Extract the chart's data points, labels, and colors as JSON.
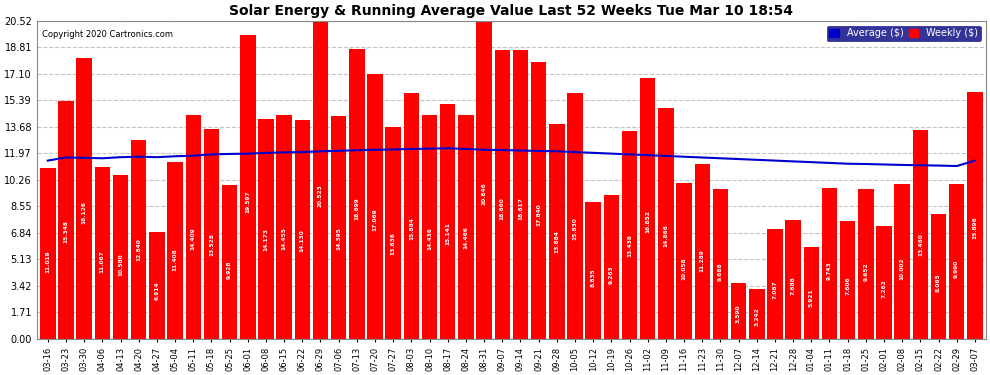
{
  "title": "Solar Energy & Running Average Value Last 52 Weeks Tue Mar 10 18:54",
  "copyright": "Copyright 2020 Cartronics.com",
  "bar_color": "#FF0000",
  "avg_line_color": "#0000CC",
  "background_color": "#FFFFFF",
  "plot_bg_color": "#FFFFFF",
  "grid_color": "#AAAAAA",
  "yticks": [
    0.0,
    1.71,
    3.42,
    5.13,
    6.84,
    8.55,
    10.26,
    11.97,
    13.68,
    15.39,
    17.1,
    18.81,
    20.52
  ],
  "ylim": [
    0,
    20.52
  ],
  "categories": [
    "03-16",
    "03-23",
    "03-30",
    "04-06",
    "04-13",
    "04-20",
    "04-27",
    "05-04",
    "05-11",
    "05-18",
    "05-25",
    "06-01",
    "06-08",
    "06-15",
    "06-22",
    "06-29",
    "07-06",
    "07-13",
    "07-20",
    "07-27",
    "08-03",
    "08-10",
    "08-17",
    "08-24",
    "08-31",
    "09-07",
    "09-14",
    "09-21",
    "09-28",
    "10-05",
    "10-12",
    "10-19",
    "10-26",
    "11-02",
    "11-09",
    "11-16",
    "11-23",
    "11-30",
    "12-07",
    "12-14",
    "12-21",
    "12-28",
    "01-04",
    "01-11",
    "01-18",
    "01-25",
    "02-01",
    "02-08",
    "02-15",
    "02-22",
    "02-29",
    "03-07"
  ],
  "weekly_values": [
    11.019,
    15.348,
    18.126,
    11.067,
    10.58,
    12.84,
    6.914,
    11.408,
    14.409,
    13.528,
    9.928,
    19.597,
    14.173,
    14.455,
    14.13,
    20.523,
    14.395,
    18.699,
    17.069,
    13.636,
    15.884,
    14.436,
    15.141,
    14.466,
    20.846,
    18.66,
    18.617,
    17.84,
    13.884,
    15.83,
    8.835,
    9.263,
    13.438,
    16.852,
    14.866,
    10.058,
    11.289,
    9.688,
    3.59,
    3.242,
    7.087,
    7.688,
    5.921,
    9.743,
    7.606,
    9.652,
    7.262,
    10.002,
    13.46,
    8.065,
    9.99,
    15.896
  ],
  "avg_values": [
    11.5,
    11.7,
    11.68,
    11.65,
    11.72,
    11.75,
    11.72,
    11.78,
    11.82,
    11.9,
    11.93,
    11.95,
    12.0,
    12.03,
    12.05,
    12.1,
    12.13,
    12.17,
    12.2,
    12.22,
    12.25,
    12.27,
    12.3,
    12.25,
    12.2,
    12.18,
    12.15,
    12.12,
    12.1,
    12.05,
    12.0,
    11.95,
    11.9,
    11.85,
    11.8,
    11.75,
    11.7,
    11.65,
    11.6,
    11.55,
    11.5,
    11.45,
    11.4,
    11.35,
    11.3,
    11.28,
    11.25,
    11.22,
    11.2,
    11.18,
    11.15,
    11.5
  ],
  "legend_avg_bg": "#000080",
  "legend_weekly_color": "#FF0000"
}
